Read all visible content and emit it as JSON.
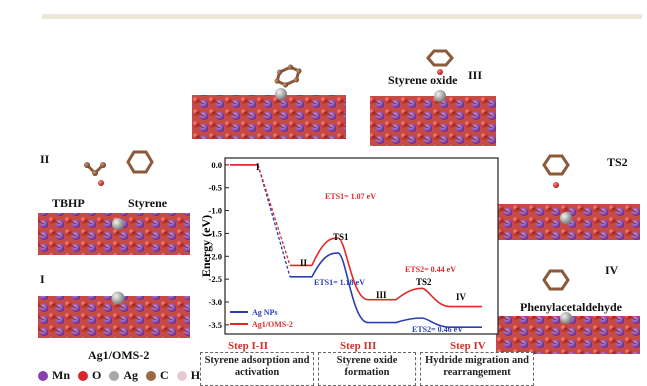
{
  "labels": {
    "state_ii": "II",
    "tbhp": "TBHP",
    "styrene": "Styrene",
    "state_i": "I",
    "catalyst": "Ag1/OMS-2",
    "styrene_oxide": "Styrene oxide",
    "state_iii": "III",
    "ts2": "TS2",
    "state_iv": "IV",
    "phenylacetaldehyde": "Phenylacetaldehyde"
  },
  "legend_atoms": [
    {
      "name": "Mn",
      "color": "#8a3fb0"
    },
    {
      "name": "O",
      "color": "#d8262b"
    },
    {
      "name": "Ag",
      "color": "#a8a8a8"
    },
    {
      "name": "C",
      "color": "#9a6a48"
    },
    {
      "name": "H",
      "color": "#e8c9d4"
    }
  ],
  "steps": [
    {
      "label": "Step I-II",
      "box": "Styrene adsorption and activation"
    },
    {
      "label": "Step III",
      "box": "Styrene oxide formation"
    },
    {
      "label": "Step IV",
      "box": "Hydride migration and rearrangement"
    }
  ],
  "chart_data": {
    "type": "line",
    "ylabel": "Energy (eV)",
    "ylim": [
      -3.7,
      0.15
    ],
    "yticks": [
      0.0,
      -0.5,
      -1.0,
      -1.5,
      -2.0,
      -2.5,
      -3.0,
      -3.5
    ],
    "ytick_labels": [
      "0.0",
      "-0.5",
      "-1.0",
      "-1.5",
      "-2.0",
      "-2.5",
      "-3.0",
      "-3.5"
    ],
    "x_states": [
      "I",
      "II",
      "TS1",
      "III",
      "TS2",
      "IV"
    ],
    "series": [
      {
        "name": "Ag NPs",
        "color": "#2a3fb0",
        "values": [
          0.0,
          -2.45,
          -1.93,
          -3.45,
          -3.35,
          -3.55
        ]
      },
      {
        "name": "Ag1/OMS-2",
        "color": "#e02a2a",
        "values": [
          0.0,
          -2.2,
          -1.6,
          -2.95,
          -2.7,
          -3.1
        ]
      }
    ],
    "annotations": [
      {
        "text": "ETS1= 1.07 eV",
        "color": "#e02a2a"
      },
      {
        "text": "ETS1= 1.18 eV",
        "color": "#2a3fb0"
      },
      {
        "text": "ETS2= 0.44 eV",
        "color": "#e02a2a"
      },
      {
        "text": "ETS2= 0.46 eV",
        "color": "#2a3fb0"
      }
    ]
  }
}
